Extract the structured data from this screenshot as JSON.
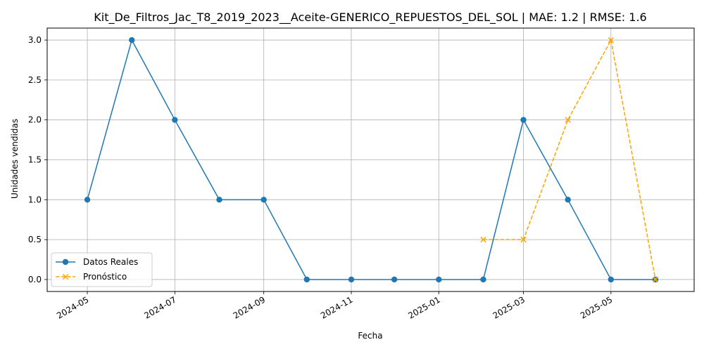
{
  "chart_data": {
    "type": "line",
    "title": "Kit_De_Filtros_Jac_T8_2019_2023__Aceite-GENERICO_REPUESTOS_DEL_SOL | MAE: 1.2 | RMSE: 1.6",
    "xlabel": "Fecha",
    "ylabel": "Unidades vendidas",
    "x_tick_labels": [
      "2024-05",
      "2024-07",
      "2024-09",
      "2024-11",
      "2025-01",
      "2025-03",
      "2025-05"
    ],
    "y_tick_labels": [
      "0.0",
      "0.5",
      "1.0",
      "1.5",
      "2.0",
      "2.5",
      "3.0"
    ],
    "ylim": [
      -0.15,
      3.15
    ],
    "xlim": [
      "2024-04-03",
      "2025-06-28"
    ],
    "grid": true,
    "legend_position": "lower-left",
    "series": [
      {
        "name": "Datos Reales",
        "color": "#1f77b4",
        "marker": "circle",
        "line_style": "solid",
        "x": [
          "2024-05-01",
          "2024-06-01",
          "2024-07-01",
          "2024-08-01",
          "2024-09-01",
          "2024-10-01",
          "2024-11-01",
          "2024-12-01",
          "2025-01-01",
          "2025-02-01",
          "2025-03-01",
          "2025-04-01",
          "2025-05-01",
          "2025-06-01"
        ],
        "values": [
          1,
          3,
          2,
          1,
          1,
          0,
          0,
          0,
          0,
          0,
          2,
          1,
          0,
          0
        ]
      },
      {
        "name": "Pronóstico",
        "color": "#ffa500",
        "marker": "x",
        "line_style": "dashed",
        "x": [
          "2025-02-01",
          "2025-03-01",
          "2025-04-01",
          "2025-05-01",
          "2025-06-01"
        ],
        "values": [
          0.5,
          0.5,
          2,
          3,
          0
        ]
      }
    ]
  }
}
